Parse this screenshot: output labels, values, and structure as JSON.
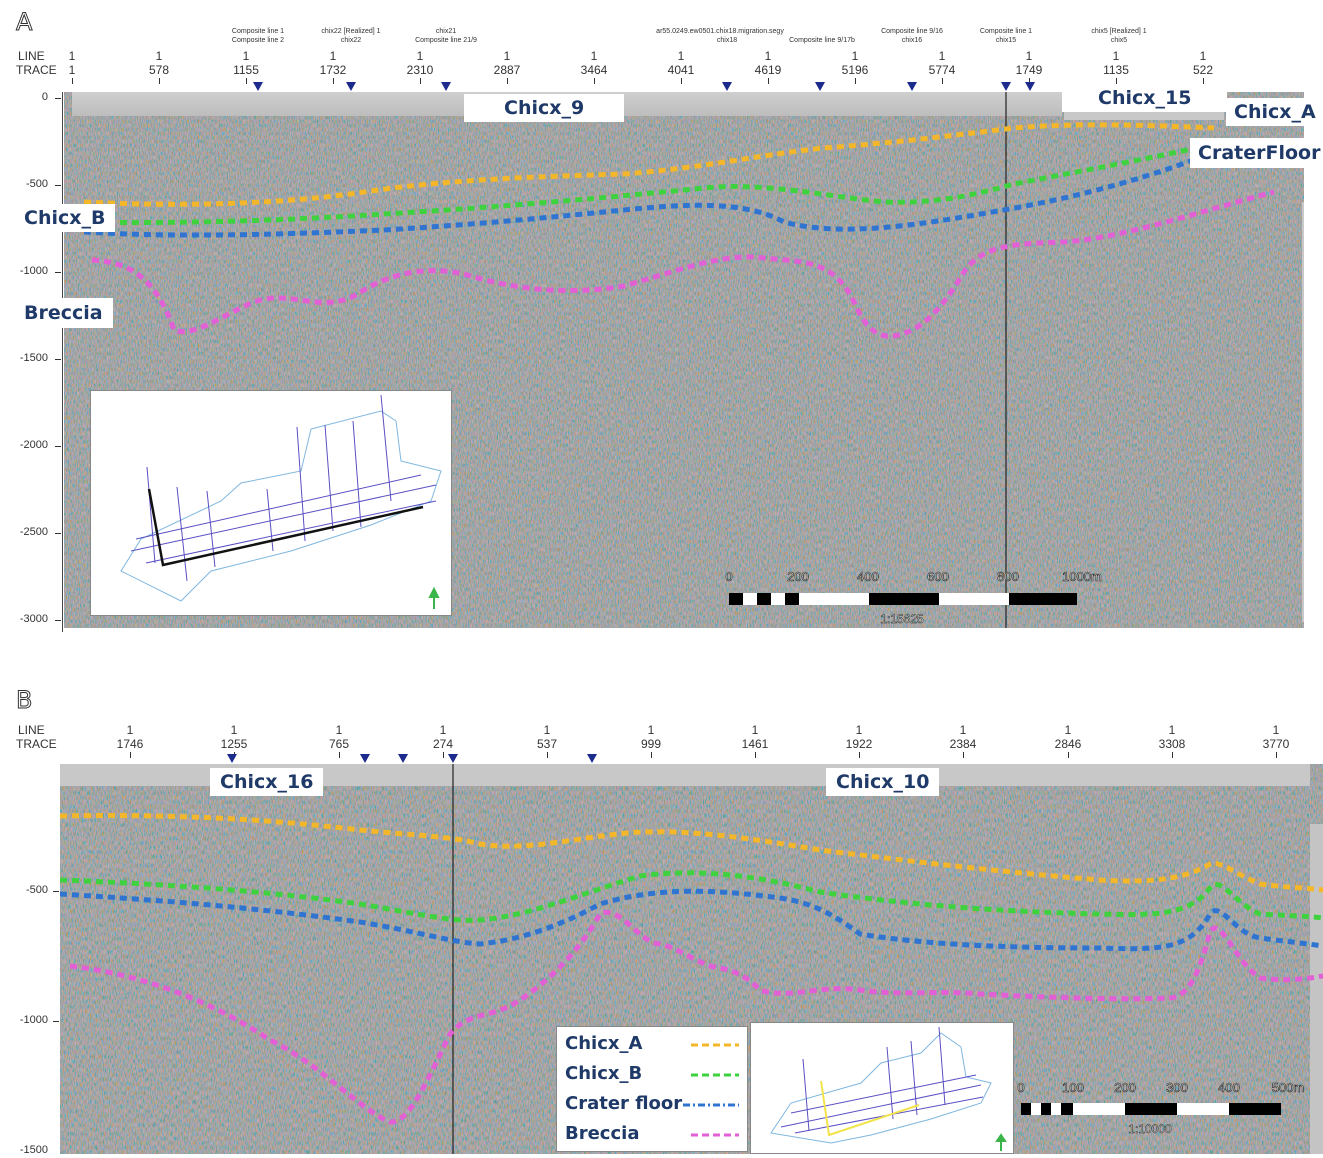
{
  "panel_a": {
    "letter": "A",
    "line_label": "LINE",
    "trace_label": "TRACE",
    "ticks": [
      {
        "line": "1",
        "trace": "1"
      },
      {
        "line": "1",
        "trace": "578"
      },
      {
        "line": "1",
        "trace": "1155"
      },
      {
        "line": "1",
        "trace": "1732"
      },
      {
        "line": "1",
        "trace": "2310"
      },
      {
        "line": "1",
        "trace": "2887"
      },
      {
        "line": "1",
        "trace": "3464"
      },
      {
        "line": "1",
        "trace": "4041"
      },
      {
        "line": "1",
        "trace": "4619"
      },
      {
        "line": "1",
        "trace": "5196"
      },
      {
        "line": "1",
        "trace": "5774"
      },
      {
        "line": "1",
        "trace": "1749"
      },
      {
        "line": "1",
        "trace": "1135"
      },
      {
        "line": "1",
        "trace": "522"
      }
    ],
    "intersections": [
      {
        "l1": "Composite line 1",
        "l2": "Composite line 2"
      },
      {
        "l1": "chix22 [Realized] 1",
        "l2": "chix22"
      },
      {
        "l1": "chix21",
        "l2": "Composite line 21/9"
      },
      {
        "l1": "ar55.0249.ew0501.chix18.migration.segy",
        "l2": "chix18"
      },
      {
        "l1": "",
        "l2": "Composite line 9/17b"
      },
      {
        "l1": "Composite line 9/16",
        "l2": "chix16"
      },
      {
        "l1": "Composite line 1",
        "l2": "chix15"
      },
      {
        "l1": "chix5 [Realized] 1",
        "l2": "chix5"
      }
    ],
    "y_ticks": [
      "0",
      "-500",
      "-1000",
      "-1500",
      "-2000",
      "-2500",
      "-3000"
    ],
    "labels": {
      "chicx_9": "Chicx_9",
      "chicx_15": "Chicx_15",
      "chicx_a": "Chicx_A",
      "crater_floor": "CraterFloor",
      "chicx_b": "Chicx_B",
      "breccia": "Breccia"
    },
    "scale_values": [
      "0",
      "200",
      "400",
      "600",
      "800",
      "1000m"
    ],
    "scale_ratio": "1:15625"
  },
  "panel_b": {
    "letter": "B",
    "line_label": "LINE",
    "trace_label": "TRACE",
    "ticks": [
      {
        "line": "1",
        "trace": "1746"
      },
      {
        "line": "1",
        "trace": "1255"
      },
      {
        "line": "1",
        "trace": "765"
      },
      {
        "line": "1",
        "trace": "274"
      },
      {
        "line": "1",
        "trace": "537"
      },
      {
        "line": "1",
        "trace": "999"
      },
      {
        "line": "1",
        "trace": "1461"
      },
      {
        "line": "1",
        "trace": "1922"
      },
      {
        "line": "1",
        "trace": "2384"
      },
      {
        "line": "1",
        "trace": "2846"
      },
      {
        "line": "1",
        "trace": "3308"
      },
      {
        "line": "1",
        "trace": "3770"
      }
    ],
    "y_ticks": [
      "-500",
      "-1000",
      "-1500"
    ],
    "labels": {
      "chicx_16": "Chicx_16",
      "chicx_10": "Chicx_10"
    },
    "legend": [
      {
        "name": "Chicx_A",
        "color": "#f5b72a"
      },
      {
        "name": "Chicx_B",
        "color": "#3fd23f"
      },
      {
        "name": "Crater floor",
        "color": "#2f74d0"
      },
      {
        "name": "Breccia",
        "color": "#e25fd6"
      }
    ],
    "scale_values": [
      "0",
      "100",
      "200",
      "300",
      "400",
      "500m"
    ],
    "scale_ratio": "1:10000"
  },
  "colors": {
    "chicx_a": "#f5b72a",
    "chicx_b": "#3fd23f",
    "crater_floor": "#2f74d0",
    "breccia": "#e25fd6",
    "label_text": "#1f3a68",
    "marker": "#1b2a8c"
  }
}
